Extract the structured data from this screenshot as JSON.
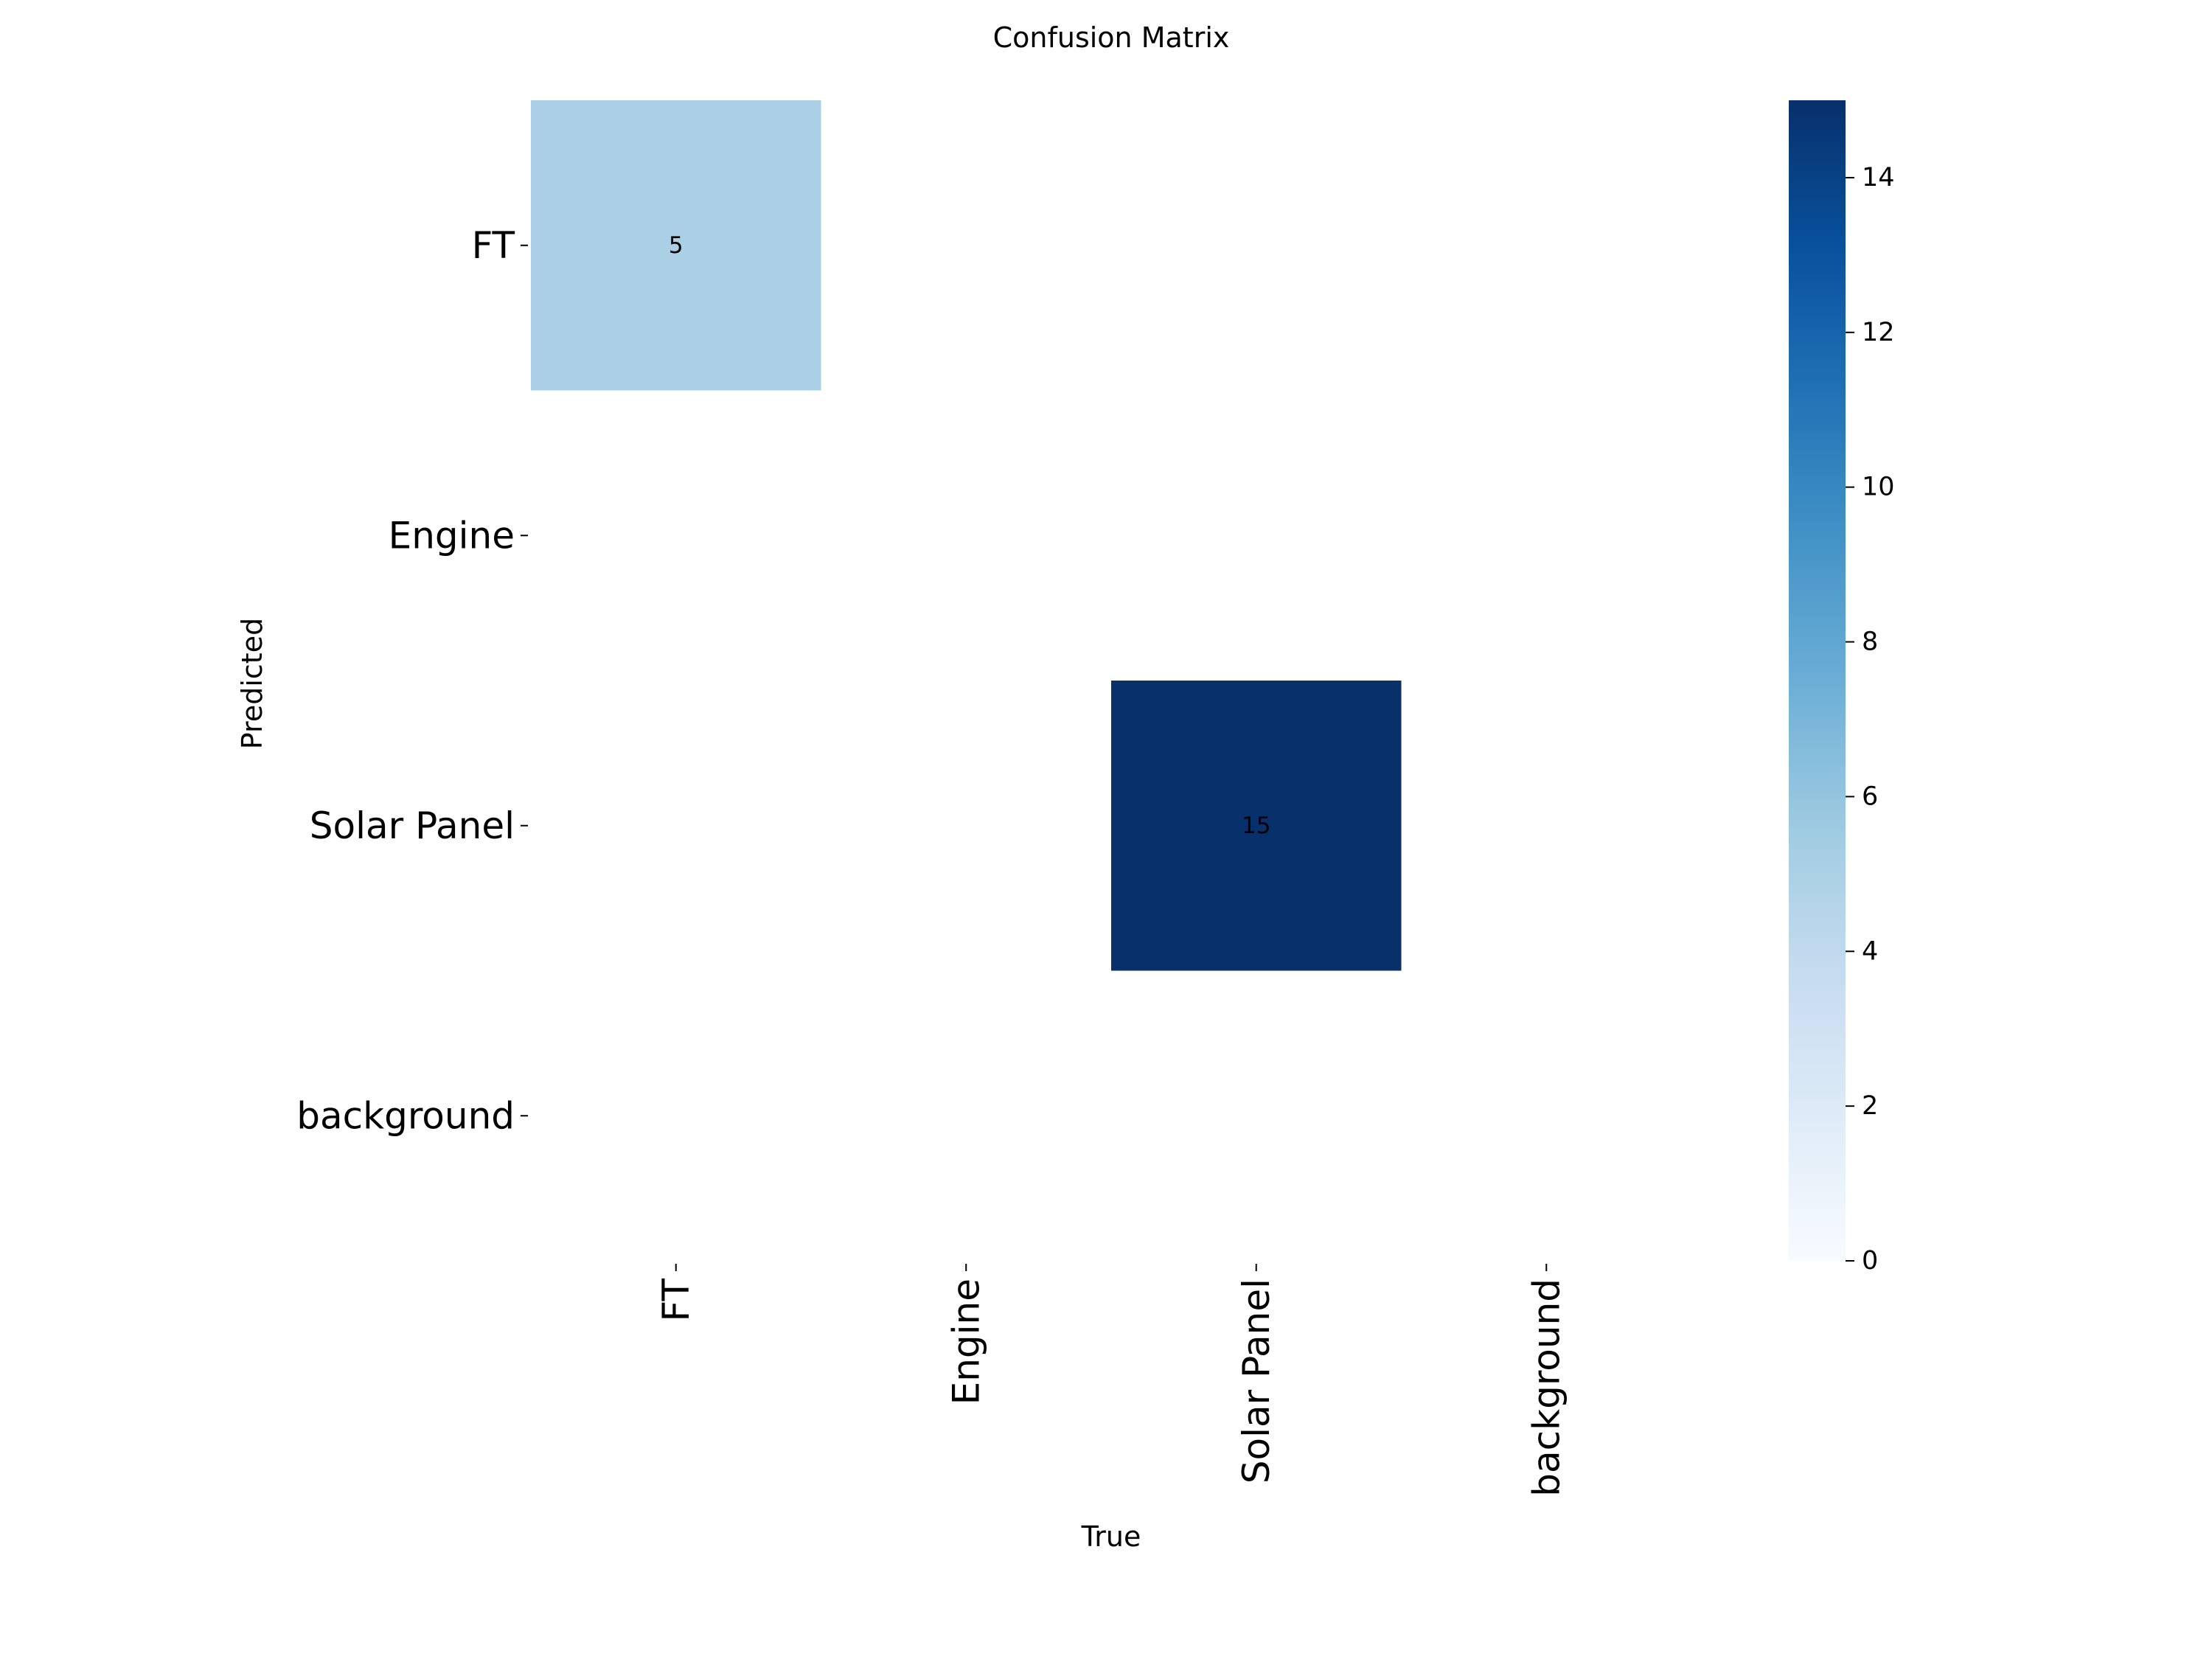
{
  "chart_data": {
    "type": "heatmap",
    "title": "Confusion Matrix",
    "xlabel": "True",
    "ylabel": "Predicted",
    "x_categories": [
      "FT",
      "Engine",
      "Solar Panel",
      "background"
    ],
    "y_categories": [
      "FT",
      "Engine",
      "Solar Panel",
      "background"
    ],
    "values": [
      [
        5,
        null,
        null,
        null
      ],
      [
        null,
        null,
        null,
        null
      ],
      [
        null,
        null,
        15,
        null
      ],
      [
        null,
        null,
        null,
        null
      ]
    ],
    "colormap": "Blues",
    "colorbar": {
      "range": [
        0,
        15
      ],
      "ticks": [
        0,
        2,
        4,
        6,
        8,
        10,
        12,
        14
      ]
    },
    "colors": {
      "low": "#f7fbff",
      "high": "#08306b",
      "cell_text_dark": "#000000",
      "cell_text_light": "#ffffff"
    }
  }
}
